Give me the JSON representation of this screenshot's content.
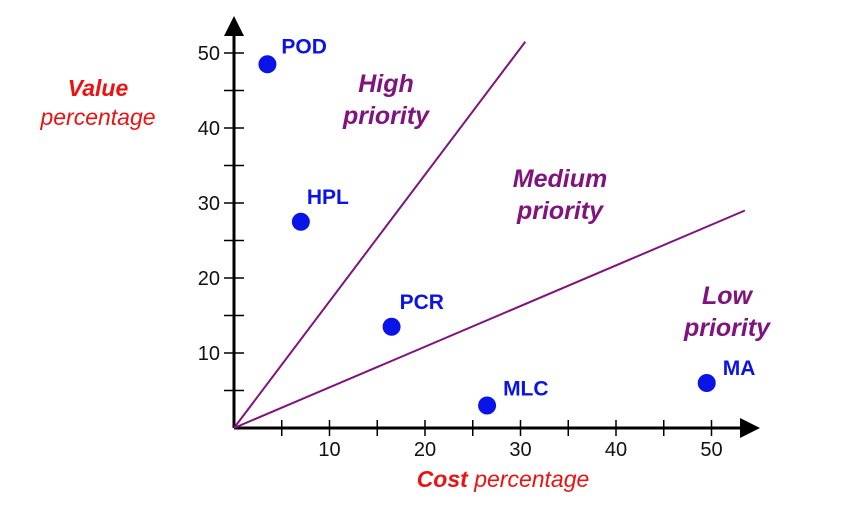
{
  "chart_data": {
    "type": "scatter",
    "xlabel": {
      "strong": "Cost",
      "rest": " percentage"
    },
    "ylabel": {
      "strong": "Value",
      "rest": "percentage"
    },
    "xlim": [
      0,
      52
    ],
    "ylim": [
      0,
      52
    ],
    "x_ticks": [
      10,
      20,
      30,
      40,
      50
    ],
    "y_ticks": [
      10,
      20,
      30,
      40,
      50
    ],
    "x_minor_step": 5,
    "y_minor_step": 5,
    "points": [
      {
        "label": "POD",
        "x": 3.5,
        "y": 48.5
      },
      {
        "label": "HPL",
        "x": 7,
        "y": 27.5
      },
      {
        "label": "PCR",
        "x": 16.5,
        "y": 13.5
      },
      {
        "label": "MLC",
        "x": 26.5,
        "y": 3
      },
      {
        "label": "MA",
        "x": 49.5,
        "y": 6
      }
    ],
    "lines": [
      {
        "from": [
          0,
          0
        ],
        "to": [
          30.5,
          51.5
        ]
      },
      {
        "from": [
          0,
          0
        ],
        "to": [
          53.5,
          29
        ]
      }
    ],
    "regions": [
      {
        "lines": [
          "High",
          "priority"
        ]
      },
      {
        "lines": [
          "Medium",
          "priority"
        ]
      },
      {
        "lines": [
          "Low",
          "priority"
        ]
      }
    ],
    "colors": {
      "points": "#0b14e8",
      "point_labels": "#0b14e8",
      "divider_lines": "#80147f",
      "region_labels": "#80147f",
      "axis_titles": "#ee1111",
      "axes": "#000000"
    },
    "grid": false
  }
}
